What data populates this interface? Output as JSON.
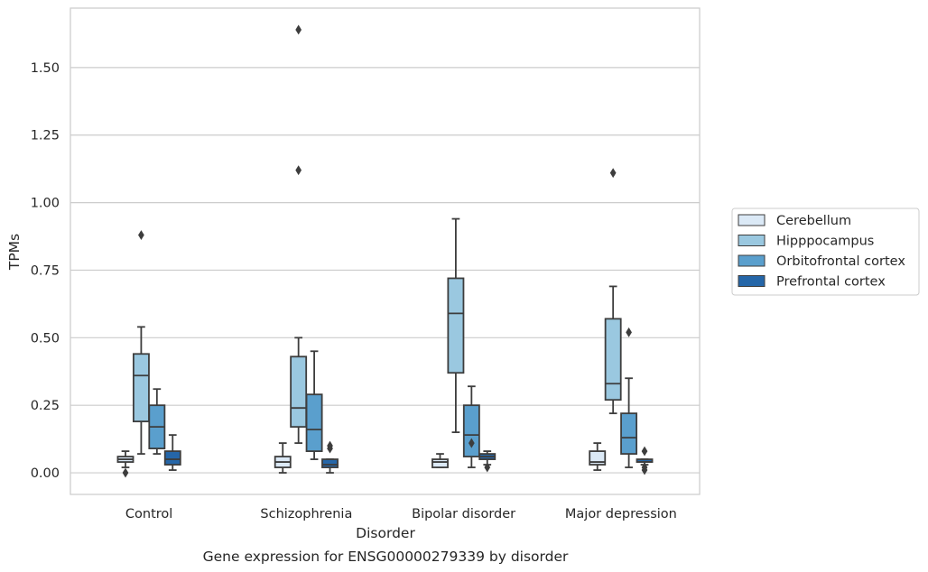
{
  "chart_data": {
    "type": "boxplot",
    "title": "",
    "caption": "Gene expression for ENSG00000279339 by disorder",
    "xlabel": "Disorder",
    "ylabel": "TPMs",
    "ylim": [
      -0.08,
      1.72
    ],
    "yticks": [
      0.0,
      0.25,
      0.5,
      0.75,
      1.0,
      1.25,
      1.5
    ],
    "ytick_labels": [
      "0.00",
      "0.25",
      "0.50",
      "0.75",
      "1.00",
      "1.25",
      "1.50"
    ],
    "categories": [
      "Control",
      "Schizophrenia",
      "Bipolar disorder",
      "Major depression"
    ],
    "grid": "horizontal",
    "legend_placement": "right",
    "series": [
      {
        "name": "Cerebellum",
        "color": "#dbe9f6",
        "boxes": [
          {
            "whislo": 0.02,
            "q1": 0.04,
            "med": 0.05,
            "q3": 0.06,
            "whishi": 0.08,
            "fliers": [
              0.0
            ]
          },
          {
            "whislo": 0.0,
            "q1": 0.02,
            "med": 0.04,
            "q3": 0.06,
            "whishi": 0.11,
            "fliers": []
          },
          {
            "whislo": 0.02,
            "q1": 0.02,
            "med": 0.04,
            "q3": 0.05,
            "whishi": 0.07,
            "fliers": []
          },
          {
            "whislo": 0.01,
            "q1": 0.03,
            "med": 0.04,
            "q3": 0.08,
            "whishi": 0.11,
            "fliers": []
          }
        ]
      },
      {
        "name": "Hipppocampus",
        "color": "#9ac8e0",
        "boxes": [
          {
            "whislo": 0.07,
            "q1": 0.19,
            "med": 0.36,
            "q3": 0.44,
            "whishi": 0.54,
            "fliers": [
              0.88
            ]
          },
          {
            "whislo": 0.11,
            "q1": 0.17,
            "med": 0.24,
            "q3": 0.43,
            "whishi": 0.5,
            "fliers": [
              1.12,
              1.64
            ]
          },
          {
            "whislo": 0.15,
            "q1": 0.37,
            "med": 0.59,
            "q3": 0.72,
            "whishi": 0.94,
            "fliers": []
          },
          {
            "whislo": 0.22,
            "q1": 0.27,
            "med": 0.33,
            "q3": 0.57,
            "whishi": 0.69,
            "fliers": [
              1.11
            ]
          }
        ]
      },
      {
        "name": "Orbitofrontal cortex",
        "color": "#5a9fcd",
        "boxes": [
          {
            "whislo": 0.07,
            "q1": 0.09,
            "med": 0.17,
            "q3": 0.25,
            "whishi": 0.31,
            "fliers": []
          },
          {
            "whislo": 0.05,
            "q1": 0.08,
            "med": 0.16,
            "q3": 0.29,
            "whishi": 0.45,
            "fliers": []
          },
          {
            "whislo": 0.02,
            "q1": 0.06,
            "med": 0.14,
            "q3": 0.25,
            "whishi": 0.32,
            "fliers": [
              0.11
            ]
          },
          {
            "whislo": 0.02,
            "q1": 0.07,
            "med": 0.13,
            "q3": 0.22,
            "whishi": 0.35,
            "fliers": [
              0.52
            ]
          }
        ]
      },
      {
        "name": "Prefrontal cortex",
        "color": "#2566a8",
        "boxes": [
          {
            "whislo": 0.01,
            "q1": 0.03,
            "med": 0.05,
            "q3": 0.08,
            "whishi": 0.14,
            "fliers": []
          },
          {
            "whislo": 0.0,
            "q1": 0.02,
            "med": 0.03,
            "q3": 0.05,
            "whishi": 0.05,
            "fliers": [
              0.09,
              0.1
            ]
          },
          {
            "whislo": 0.03,
            "q1": 0.05,
            "med": 0.06,
            "q3": 0.07,
            "whishi": 0.08,
            "fliers": [
              0.02
            ]
          },
          {
            "whislo": 0.03,
            "q1": 0.04,
            "med": 0.04,
            "q3": 0.05,
            "whishi": 0.05,
            "fliers": [
              0.01,
              0.02,
              0.08
            ]
          }
        ]
      }
    ]
  }
}
